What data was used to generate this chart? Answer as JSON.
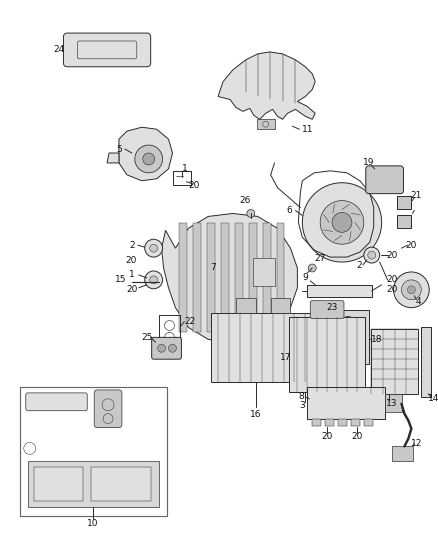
{
  "bg_color": "#ffffff",
  "fig_width": 4.38,
  "fig_height": 5.33,
  "dpi": 100,
  "line_color": "#2a2a2a",
  "label_fontsize": 6.5,
  "part_linewidth": 0.7
}
